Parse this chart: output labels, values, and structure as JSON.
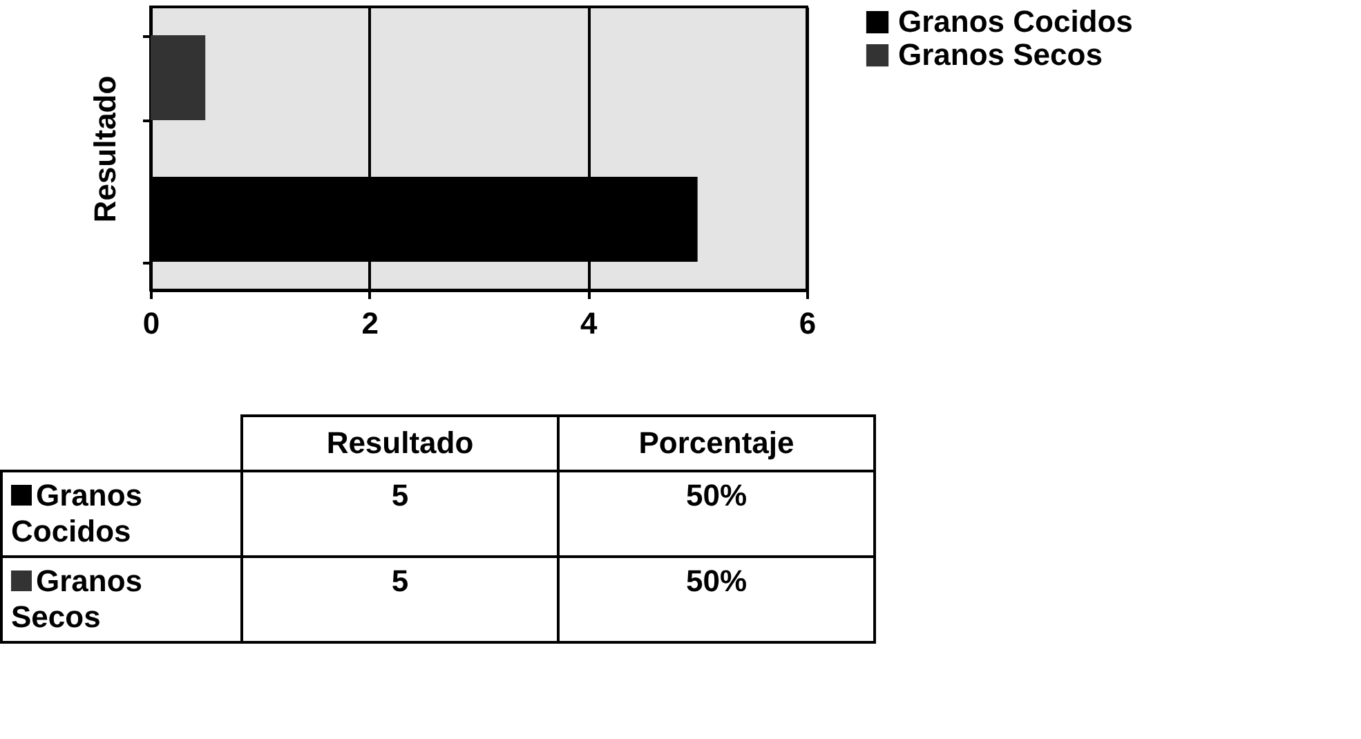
{
  "chart_data": [
    {
      "type": "bar",
      "orientation": "horizontal",
      "ylabel": "Resultado",
      "categories": [
        null,
        null
      ],
      "series": [
        {
          "name": "Granos Cocidos",
          "color": "#000000",
          "values": [
            null,
            5
          ]
        },
        {
          "name": "Granos Secos",
          "color": "#333333",
          "values": [
            0.5,
            null
          ]
        }
      ],
      "xlim": [
        0,
        6
      ],
      "xticks": [
        0,
        2,
        4,
        6
      ],
      "grid": "x",
      "legend": "right"
    },
    {
      "type": "other",
      "categories": [
        "Resultado",
        "Porcentaje"
      ],
      "y_categories": [
        "Granos Cocidos",
        "Granos Secos"
      ],
      "cell_labels": [
        [
          "5",
          "50%"
        ],
        [
          "5",
          "50%"
        ]
      ],
      "colors": [
        "#000000",
        "#333333"
      ]
    }
  ]
}
